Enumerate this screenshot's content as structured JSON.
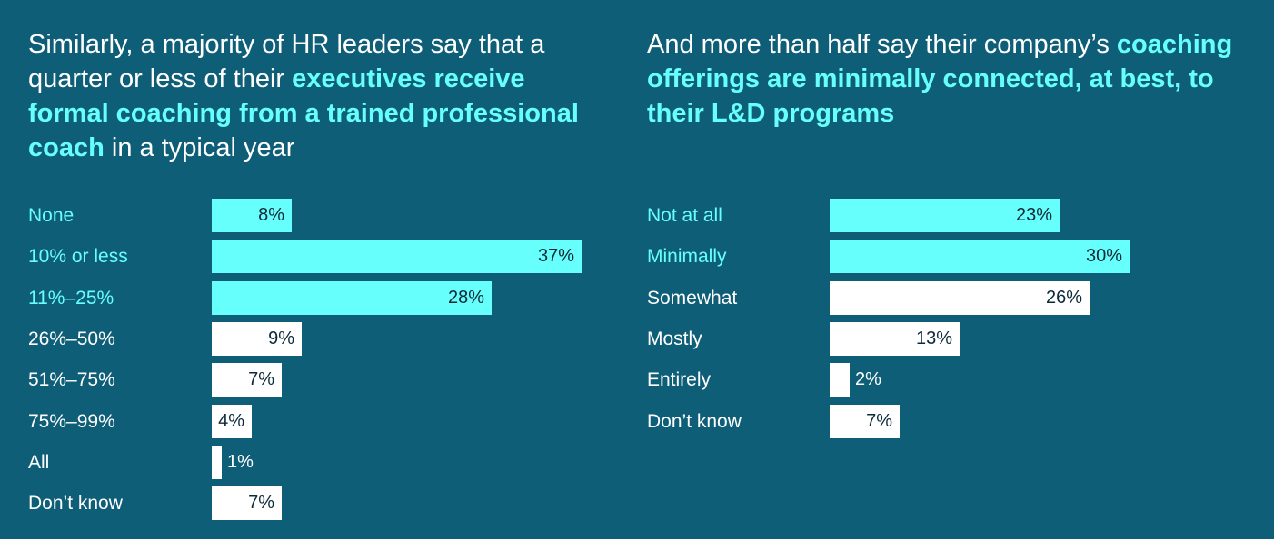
{
  "colors": {
    "background": "#0f5e78",
    "highlight": "#66fffb",
    "normal": "#ffffff",
    "value_text": "#0d2a3a"
  },
  "left_title": {
    "parts": [
      {
        "text": "Similarly, a majority of HR leaders say that a quarter or less of their ",
        "highlight": false
      },
      {
        "text": "executives receive formal coaching from a trained professional coach",
        "highlight": true
      },
      {
        "text": " in a typical year",
        "highlight": false
      }
    ]
  },
  "right_title": {
    "parts": [
      {
        "text": "And more than half say their company’s ",
        "highlight": false
      },
      {
        "text": "coaching offerings are minimally connected, at best, to their L&D programs",
        "highlight": true
      }
    ]
  },
  "chart_data": [
    {
      "type": "bar",
      "orientation": "horizontal",
      "title": "Similarly, a majority of HR leaders say that a quarter or less of their executives receive formal coaching from a trained professional coach in a typical year",
      "categories": [
        "None",
        "10% or less",
        "11%–25%",
        "26%–50%",
        "51%–75%",
        "75%–99%",
        "All",
        "Don’t know"
      ],
      "values": [
        8,
        37,
        28,
        9,
        7,
        4,
        1,
        7
      ],
      "labels": [
        "8%",
        "37%",
        "28%",
        "9%",
        "7%",
        "4%",
        "1%",
        "7%"
      ],
      "highlighted": [
        true,
        true,
        true,
        false,
        false,
        false,
        false,
        false
      ],
      "unit": "%",
      "xlabel": "",
      "ylabel": ""
    },
    {
      "type": "bar",
      "orientation": "horizontal",
      "title": "And more than half say their company’s coaching offerings are minimally connected, at best, to their L&D programs",
      "categories": [
        "Not at all",
        "Minimally",
        "Somewhat",
        "Mostly",
        "Entirely",
        "Don’t know"
      ],
      "values": [
        23,
        30,
        26,
        13,
        2,
        7
      ],
      "labels": [
        "23%",
        "30%",
        "26%",
        "13%",
        "2%",
        "7%"
      ],
      "highlighted": [
        true,
        true,
        false,
        false,
        false,
        false
      ],
      "unit": "%",
      "xlabel": "",
      "ylabel": ""
    }
  ]
}
